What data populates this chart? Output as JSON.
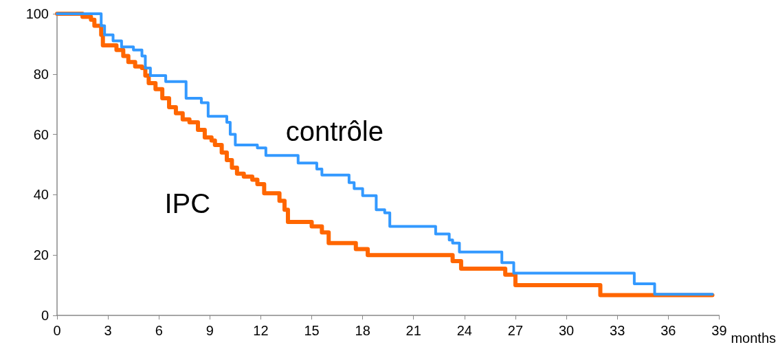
{
  "chart_data": {
    "type": "step",
    "xlabel": "months",
    "xlim": [
      0,
      39
    ],
    "xticks": [
      0,
      3,
      6,
      9,
      12,
      15,
      18,
      21,
      24,
      27,
      30,
      33,
      36,
      39
    ],
    "ylim": [
      0,
      100
    ],
    "yticks": [
      0,
      20,
      40,
      60,
      80,
      100
    ],
    "grid": false,
    "legend": false,
    "marker": "none",
    "line_style": "solid",
    "series": [
      {
        "name": "contrôle",
        "color": "#3399ff",
        "x": [
          0,
          2.6,
          2.8,
          3.3,
          3.8,
          4.5,
          5.0,
          5.2,
          5.5,
          5.7,
          6.4,
          7.6,
          8.5,
          8.9,
          10.0,
          10.2,
          10.5,
          11.8,
          12.3,
          14.2,
          15.3,
          15.6,
          17.2,
          17.5,
          18.0,
          18.8,
          19.3,
          19.6,
          22.3,
          23.1,
          23.3,
          23.7,
          26.2,
          26.9,
          34.0,
          35.2,
          38.6
        ],
        "values": [
          100,
          96,
          93,
          91,
          89,
          88,
          86,
          82,
          79.5,
          79.5,
          77.5,
          72,
          70.5,
          66,
          64,
          60,
          56.5,
          55.5,
          53,
          50.5,
          48.5,
          46.5,
          44,
          42,
          39.7,
          35,
          34,
          29.5,
          27,
          25,
          24,
          21,
          17.5,
          14,
          10.5,
          7,
          7
        ]
      },
      {
        "name": "IPC",
        "color": "#ff6600",
        "x": [
          0,
          1.5,
          2.0,
          2.2,
          2.6,
          2.7,
          3.5,
          3.9,
          4.2,
          4.6,
          5.0,
          5.2,
          5.4,
          5.8,
          6.2,
          6.6,
          7.0,
          7.4,
          7.8,
          8.3,
          8.7,
          9.1,
          9.3,
          9.7,
          10.0,
          10.3,
          10.6,
          11.0,
          11.5,
          11.8,
          12.2,
          13.1,
          13.4,
          13.6,
          15.0,
          15.6,
          16.0,
          17.6,
          18.3,
          23.3,
          23.8,
          26.4,
          27.0,
          32.0,
          38.6
        ],
        "values": [
          100,
          99,
          98,
          96,
          93,
          89.5,
          88,
          86,
          84,
          82.5,
          82,
          79.5,
          77,
          75,
          72,
          69,
          67,
          65,
          64,
          61.5,
          59,
          58,
          56.5,
          54,
          51.5,
          49,
          47,
          46,
          45,
          43.5,
          40.5,
          38,
          35,
          31,
          29.5,
          27.5,
          24,
          22,
          20,
          18,
          15.5,
          13.5,
          10,
          6.7,
          6.7
        ]
      }
    ]
  }
}
